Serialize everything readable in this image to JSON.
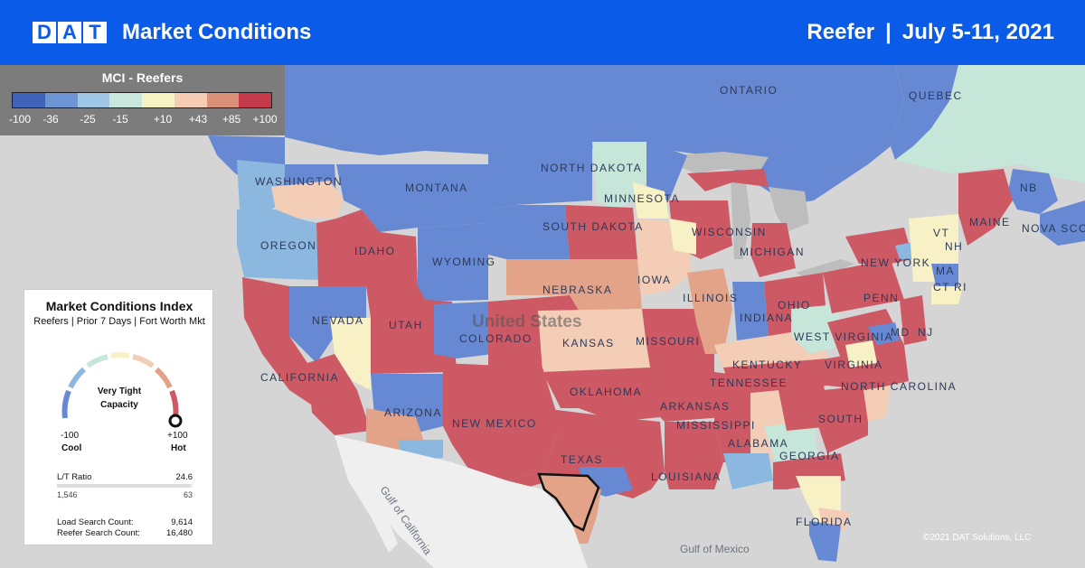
{
  "header": {
    "logo_letters": [
      "D",
      "A",
      "T"
    ],
    "title": "Market Conditions",
    "equipment": "Reefer",
    "separator": "|",
    "date_range": "July 5-11, 2021"
  },
  "legend": {
    "title": "MCI - Reefers",
    "ticks": [
      "-100",
      "-36",
      "-25",
      "-15",
      "+10",
      "+43",
      "+85",
      "+100"
    ],
    "colors": [
      "#3f63b8",
      "#6f94d4",
      "#9fc6e6",
      "#c9e8dd",
      "#f6f2c2",
      "#f4cdb4",
      "#dd9078",
      "#c53a4a"
    ]
  },
  "palette": {
    "cold": "#6789d3",
    "cool": "#8cb8e0",
    "mint": "#c6e6da",
    "neutral": "#f7f1c5",
    "warm": "#f3cdb6",
    "warmer": "#e3a388",
    "hot": "#cc5964",
    "land_none": "#efefef",
    "land_other": "#bdbdbd",
    "water": "#d5d5d5"
  },
  "map": {
    "state_labels": [
      "WASHINGTON",
      "MONTANA",
      "NORTH DAKOTA",
      "MINNESOTA",
      "OREGON",
      "IDAHO",
      "WYOMING",
      "SOUTH DAKOTA",
      "WISCONSIN",
      "MICHIGAN",
      "NEBRASKA",
      "IOWA",
      "NEVADA",
      "UTAH",
      "COLORADO",
      "KANSAS",
      "MISSOURI",
      "ILLINOIS",
      "INDIANA",
      "OHIO",
      "CALIFORNIA",
      "ARIZONA",
      "NEW MEXICO",
      "OKLAHOMA",
      "ARKANSAS",
      "TENNESSEE",
      "KENTUCKY",
      "WEST VIRGINIA",
      "VIRGINIA",
      "NORTH CAROLINA",
      "SOUTH",
      "MISSISSIPPI",
      "ALABAMA",
      "GEORGIA",
      "TEXAS",
      "LOUISIANA",
      "FLORIDA",
      "NEW YORK",
      "PENN",
      "MAINE",
      "VT",
      "NH",
      "MA",
      "CT",
      "RI",
      "NJ",
      "MD",
      "ONTARIO",
      "QUEBEC",
      "NB",
      "NOVA SCO"
    ],
    "country_label": "United States",
    "water_labels": [
      "Gulf of California",
      "Gulf of Mexico"
    ],
    "market": "Fort Worth Mkt"
  },
  "index_card": {
    "title": "Market Conditions Index",
    "subtitle": "Reefers | Prior 7 Days | Fort Worth Mkt",
    "status_line1": "Very Tight",
    "status_line2": "Capacity",
    "min_value": "-100",
    "min_label": "Cool",
    "max_value": "+100",
    "max_label": "Hot",
    "gauge_level": 1.0,
    "lt_ratio_label": "L/T Ratio",
    "lt_ratio_value": "24.6",
    "loads": "1,546",
    "trucks": "63",
    "load_search_label": "Load Search Count:",
    "load_search_value": "9,614",
    "reefer_search_label": "Reefer Search Count:",
    "reefer_search_value": "16,480"
  },
  "footer": {
    "copyright": "©2021 DAT Solutions, LLC"
  }
}
